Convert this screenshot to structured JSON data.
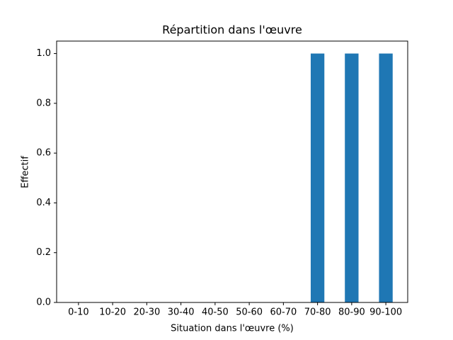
{
  "chart_data": {
    "type": "bar",
    "title": "Répartition dans l'œuvre",
    "x_label": "Situation dans l'œuvre (%)",
    "y_label": "Effectif",
    "categories": [
      "0-10",
      "10-20",
      "20-30",
      "30-40",
      "40-50",
      "50-60",
      "60-70",
      "70-80",
      "80-90",
      "90-100"
    ],
    "values": [
      0,
      0,
      0,
      0,
      0,
      0,
      0,
      1,
      1,
      1
    ],
    "color": "#1f77b4",
    "ylim": [
      0,
      1.05
    ],
    "yticks": [
      {
        "value": 0,
        "label": "0.0"
      },
      0.2,
      0.4,
      0.6,
      0.8,
      {
        "value": 1,
        "label": "1.0"
      }
    ],
    "grid": false
  }
}
